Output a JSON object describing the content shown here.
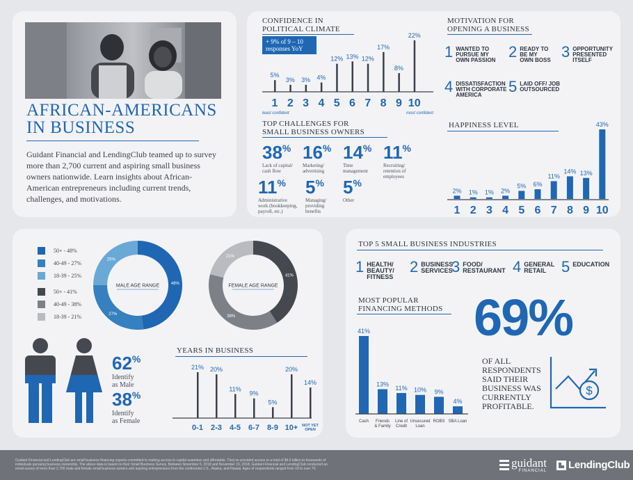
{
  "title": "AFRICAN-AMERICANS IN BUSINESS",
  "title_line1": "AFRICAN-AMERICANS",
  "title_line2": "IN BUSINESS",
  "intro": "Guidant Financial and LendingClub teamed up to survey more than 2,700 current and aspiring small business owners nationwide. Learn insights about African-American entrepreneurs including current trends, challenges, and motivations.",
  "confidence": {
    "title_line1": "CONFIDENCE IN",
    "title_line2": "POLITICAL CLIMATE",
    "badge_line1": "+ 9% of 9 – 10",
    "badge_line2": "responses YoY",
    "low_label": "least confident",
    "high_label": "most confident",
    "chart_data": {
      "type": "bar",
      "categories": [
        "1",
        "2",
        "3",
        "4",
        "5",
        "6",
        "7",
        "8",
        "9",
        "10"
      ],
      "values": [
        5,
        3,
        3,
        4,
        12,
        13,
        12,
        17,
        8,
        22
      ],
      "labels": [
        "5%",
        "3%",
        "3%",
        "4%",
        "12%",
        "13%",
        "12%",
        "17%",
        "8%",
        "22%"
      ]
    }
  },
  "motivation": {
    "title_line1": "MOTIVATION FOR",
    "title_line2": "OPENING A BUSINESS",
    "items": [
      {
        "num": "1",
        "l1": "WANTED TO",
        "l2": "PURSUE MY",
        "l3": "OWN PASSION"
      },
      {
        "num": "2",
        "l1": "READY TO",
        "l2": "BE MY",
        "l3": "OWN BOSS"
      },
      {
        "num": "3",
        "l1": "OPPORTUNITY",
        "l2": "PRESENTED",
        "l3": "ITSELF"
      },
      {
        "num": "4",
        "l1": "DISSATISFACTION",
        "l2": "WITH CORPORATE",
        "l3": "AMERICA"
      },
      {
        "num": "5",
        "l1": "LAID OFF/ JOB",
        "l2": "OUTSOURCED",
        "l3": ""
      }
    ]
  },
  "challenges": {
    "title_line1": "TOP CHALLENGES FOR",
    "title_line2": "SMALL BUSINESS OWNERS",
    "items": [
      {
        "value": "38",
        "l1": "Lack of capital/",
        "l2": "cash flow",
        "l3": ""
      },
      {
        "value": "16",
        "l1": "Marketing/",
        "l2": "advertising",
        "l3": ""
      },
      {
        "value": "14",
        "l1": "Time",
        "l2": "management",
        "l3": ""
      },
      {
        "value": "11",
        "l1": "Recruiting/",
        "l2": "retention of",
        "l3": "employees"
      },
      {
        "value": "11",
        "l1": "Administrative",
        "l2": "work (bookkeeping,",
        "l3": "payroll, etc.)"
      },
      {
        "value": "5",
        "l1": "Managing/",
        "l2": "providing",
        "l3": "benefits"
      },
      {
        "value": "5",
        "l1": "Other",
        "l2": "",
        "l3": ""
      }
    ]
  },
  "happiness": {
    "title": "HAPPINESS LEVEL",
    "chart_data": {
      "type": "bar",
      "categories": [
        "1",
        "2",
        "3",
        "4",
        "5",
        "6",
        "7",
        "8",
        "9",
        "10"
      ],
      "values": [
        2,
        1,
        1,
        2,
        5,
        6,
        11,
        14,
        13,
        43
      ],
      "labels": [
        "2%",
        "1%",
        "1%",
        "2%",
        "5%",
        "6%",
        "11%",
        "14%",
        "13%",
        "43%"
      ]
    }
  },
  "age": {
    "male_legend": [
      "50+ - 48%",
      "40-49 - 27%",
      "18-39 - 25%"
    ],
    "female_legend": [
      "50+ - 41%",
      "40-49 - 38%",
      "18-39 - 21%"
    ],
    "male_chart": {
      "type": "pie",
      "title": "MALE AGE RANGE",
      "categories": [
        "50+",
        "40-49",
        "18-39"
      ],
      "values": [
        48,
        27,
        25
      ],
      "labels": [
        "48%",
        "27%",
        "25%"
      ]
    },
    "female_chart": {
      "type": "pie",
      "title": "FEMALE AGE RANGE",
      "categories": [
        "50+",
        "40-49",
        "18-39"
      ],
      "values": [
        41,
        38,
        21
      ],
      "labels": [
        "41%",
        "38%",
        "21%"
      ]
    },
    "colors": {
      "male": [
        "#1f67b3",
        "#3580bf",
        "#6aa8d6"
      ],
      "female": [
        "#45484e",
        "#7d8087",
        "#b9bbc0"
      ]
    }
  },
  "gender": {
    "male_value": "62",
    "male_l1": "Identify",
    "male_l2": "as Male",
    "female_value": "38",
    "female_l1": "Identify",
    "female_l2": "as Female"
  },
  "years": {
    "title": "YEARS IN BUSINESS",
    "not_open_l1": "NOT YET",
    "not_open_l2": "OPEN",
    "chart_data": {
      "type": "bar",
      "categories": [
        "0-1",
        "2-3",
        "4-5",
        "6-7",
        "8-9",
        "10+",
        "NOT YET OPEN"
      ],
      "values": [
        21,
        20,
        11,
        9,
        5,
        20,
        14
      ],
      "labels": [
        "21%",
        "20%",
        "11%",
        "9%",
        "5%",
        "20%",
        "14%"
      ]
    }
  },
  "industries": {
    "title": "TOP 5 SMALL BUSINESS INDUSTRIES",
    "items": [
      {
        "num": "1",
        "l1": "HEALTH/",
        "l2": "BEAUTY/",
        "l3": "FITNESS"
      },
      {
        "num": "2",
        "l1": "BUSINESS",
        "l2": "SERVICES",
        "l3": ""
      },
      {
        "num": "3",
        "l1": "FOOD/",
        "l2": "RESTAURANT",
        "l3": ""
      },
      {
        "num": "4",
        "l1": "GENERAL",
        "l2": "RETAIL",
        "l3": ""
      },
      {
        "num": "5",
        "l1": "EDUCATION",
        "l2": "",
        "l3": ""
      }
    ]
  },
  "financing": {
    "title_line1": "MOST POPULAR",
    "title_line2": "FINANCING METHODS",
    "chart_data": {
      "type": "bar",
      "categories": [
        "Cash",
        "Friends & Family",
        "Line of Credit",
        "Unsecured Loan",
        "ROBS",
        "SBA Loan"
      ],
      "cat_l1": [
        "Cash",
        "Friends",
        "Line of",
        "Unsecured",
        "ROBS",
        "SBA Loan"
      ],
      "cat_l2": [
        "",
        "& Family",
        "Credit",
        "Loan",
        "",
        ""
      ],
      "values": [
        41,
        13,
        11,
        10,
        9,
        4
      ],
      "labels": [
        "41%",
        "13%",
        "11%",
        "10%",
        "9%",
        "4%"
      ]
    }
  },
  "profitable": {
    "value": "69%",
    "l1": "OF ALL",
    "l2": "RESPONDENTS",
    "l3": "SAID THEIR",
    "l4": "BUSINESS WAS",
    "l5": "CURRENTLY",
    "l6": "PROFITABLE."
  },
  "footer": {
    "line1": "Guidant Financial and LendingClub are small business financing experts committed to making access to capital seamless and affordable. They've provided access to a total of $4.5 billion to thousands of",
    "line2": "individuals pursuing business ownership. The above data is based on their Small Business Survey. Between November 6, 2018 and November 16, 2018, Guidant Financial and LendingClub conducted an",
    "line3": "email survey of more than 2,700 male and female small business owners and aspiring entrepreneurs from the continental U.S., Alaska, and Hawaii. Ages of respondents ranged from 18 to over 70.",
    "guidant": "guidant",
    "guidant_sub": "FINANCIAL",
    "lendingclub": "LendingClub"
  },
  "colors": {
    "accent": "#1f67b3",
    "bar_dark": "#3a3f48",
    "card": "#f3f3f5",
    "footer": "#6f7278"
  }
}
